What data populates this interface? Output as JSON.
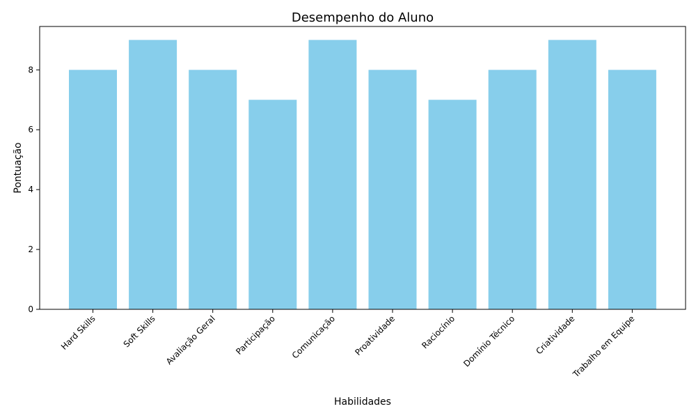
{
  "chart_data": {
    "type": "bar",
    "title": "Desempenho do Aluno",
    "xlabel": "Habilidades",
    "ylabel": "Pontuação",
    "categories": [
      "Hard Skills",
      "Soft Skills",
      "Avaliação Geral",
      "Participação",
      "Comunicação",
      "Proatividade",
      "Raciocínio",
      "Domínio Técnico",
      "Criatividade",
      "Trabalho em Equipe"
    ],
    "values": [
      8,
      9,
      8,
      7,
      9,
      8,
      7,
      8,
      9,
      8
    ],
    "yticks": [
      0,
      2,
      4,
      6,
      8
    ],
    "ylim": [
      0,
      9.45
    ],
    "bar_color": "#87CEEB",
    "grid": false,
    "legend": false
  }
}
